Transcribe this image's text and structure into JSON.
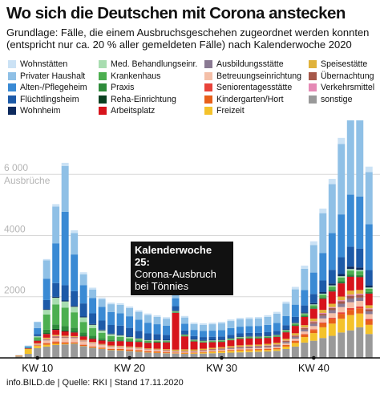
{
  "title": "Wo sich die Deutschen mit Corona anstecken",
  "subtitle": "Grundlage: Fälle, die einem Ausbruchsgeschehen zugeordnet werden konnten (entspricht nur ca. 20 % aller gemeldeten Fälle) nach Kalenderwoche 2020",
  "footer": "info.BILD.de | Quelle: RKI | Stand 17.11.2020",
  "annotation": {
    "title": "Kalenderwoche 25:",
    "text": "Corona-Ausbruch bei Tönnies"
  },
  "chart_data": {
    "type": "bar",
    "stacked": true,
    "title": "Wo sich die Deutschen mit Corona anstecken",
    "ylabel": "Ausbrüche",
    "ylim": [
      0,
      7500
    ],
    "yticks": [
      "2000",
      "4000",
      "6 000"
    ],
    "ytick_values": [
      2000,
      4000,
      6000
    ],
    "xticks": [
      "KW 10",
      "KW 20",
      "KW 30",
      "KW 40"
    ],
    "xtick_values": [
      10,
      20,
      30,
      40
    ],
    "grid": true,
    "x": [
      8,
      9,
      10,
      11,
      12,
      13,
      14,
      15,
      16,
      17,
      18,
      19,
      20,
      21,
      22,
      23,
      24,
      25,
      26,
      27,
      28,
      29,
      30,
      31,
      32,
      33,
      34,
      35,
      36,
      37,
      38,
      39,
      40,
      41,
      42,
      43,
      44,
      45,
      46
    ],
    "series": [
      {
        "name": "sonstige",
        "color": "#999999",
        "values": [
          50,
          130,
          320,
          370,
          420,
          440,
          460,
          380,
          330,
          290,
          250,
          240,
          220,
          200,
          170,
          160,
          150,
          140,
          130,
          130,
          140,
          150,
          160,
          170,
          180,
          190,
          200,
          210,
          230,
          290,
          370,
          500,
          560,
          650,
          720,
          830,
          900,
          1000,
          780
        ]
      },
      {
        "name": "Freizeit",
        "color": "#f4c22b",
        "values": [
          20,
          160,
          70,
          60,
          40,
          20,
          15,
          10,
          10,
          10,
          10,
          10,
          10,
          10,
          10,
          10,
          10,
          10,
          15,
          20,
          30,
          45,
          50,
          60,
          60,
          55,
          50,
          45,
          50,
          80,
          120,
          180,
          250,
          350,
          400,
          450,
          500,
          450,
          300
        ]
      },
      {
        "name": "Kindergarten/Hort",
        "color": "#e8601a",
        "values": [
          0,
          0,
          20,
          50,
          60,
          40,
          30,
          30,
          30,
          30,
          30,
          40,
          40,
          40,
          40,
          40,
          30,
          20,
          20,
          20,
          20,
          20,
          20,
          25,
          30,
          30,
          35,
          40,
          40,
          50,
          60,
          80,
          100,
          130,
          150,
          160,
          170,
          170,
          140
        ]
      },
      {
        "name": "Seniorentagesstätte",
        "color": "#e8433a",
        "values": [
          0,
          0,
          5,
          10,
          15,
          10,
          10,
          10,
          5,
          5,
          5,
          5,
          5,
          5,
          5,
          5,
          5,
          5,
          5,
          5,
          5,
          5,
          5,
          5,
          5,
          5,
          5,
          5,
          5,
          5,
          10,
          15,
          20,
          30,
          40,
          50,
          60,
          60,
          50
        ]
      },
      {
        "name": "Betreuungseinrichtung",
        "color": "#f4bfa8",
        "values": [
          0,
          0,
          20,
          80,
          120,
          140,
          130,
          110,
          100,
          80,
          70,
          60,
          50,
          50,
          40,
          40,
          35,
          30,
          30,
          30,
          30,
          30,
          30,
          30,
          30,
          35,
          35,
          40,
          40,
          50,
          70,
          90,
          110,
          130,
          150,
          170,
          190,
          180,
          160
        ]
      },
      {
        "name": "Ausbildungsstätte",
        "color": "#8a7a93",
        "values": [
          0,
          0,
          5,
          10,
          10,
          10,
          10,
          5,
          5,
          5,
          5,
          5,
          5,
          5,
          5,
          5,
          5,
          5,
          5,
          5,
          10,
          10,
          15,
          20,
          25,
          30,
          30,
          35,
          40,
          45,
          55,
          65,
          80,
          90,
          100,
          110,
          120,
          110,
          90
        ]
      },
      {
        "name": "Übernachtung",
        "color": "#a6584a",
        "values": [
          0,
          0,
          10,
          20,
          30,
          20,
          20,
          15,
          10,
          10,
          10,
          10,
          10,
          10,
          10,
          10,
          15,
          15,
          20,
          20,
          20,
          25,
          25,
          25,
          25,
          25,
          25,
          25,
          25,
          30,
          35,
          40,
          50,
          60,
          70,
          80,
          90,
          90,
          70
        ]
      },
      {
        "name": "Verkehrsmittel",
        "color": "#e589b5",
        "values": [
          0,
          0,
          10,
          20,
          20,
          15,
          10,
          10,
          10,
          5,
          5,
          5,
          5,
          5,
          5,
          5,
          5,
          5,
          5,
          5,
          5,
          5,
          5,
          5,
          10,
          10,
          10,
          10,
          10,
          15,
          15,
          20,
          25,
          30,
          30,
          35,
          40,
          40,
          30
        ]
      },
      {
        "name": "Speisestätte",
        "color": "#e0b23a",
        "values": [
          0,
          0,
          20,
          40,
          40,
          30,
          25,
          20,
          20,
          20,
          20,
          20,
          25,
          25,
          25,
          25,
          30,
          40,
          50,
          40,
          40,
          40,
          40,
          45,
          45,
          45,
          45,
          50,
          55,
          60,
          70,
          80,
          90,
          100,
          110,
          120,
          130,
          120,
          100
        ]
      },
      {
        "name": "Arbeitsplatz",
        "color": "#d7141c",
        "values": [
          10,
          20,
          80,
          120,
          160,
          140,
          120,
          110,
          100,
          110,
          130,
          150,
          160,
          170,
          180,
          200,
          220,
          1200,
          420,
          260,
          200,
          180,
          170,
          190,
          210,
          210,
          200,
          190,
          190,
          210,
          240,
          270,
          320,
          360,
          400,
          430,
          450,
          420,
          380
        ]
      },
      {
        "name": "Reha-Einrichtung",
        "color": "#0a4020",
        "values": [
          0,
          0,
          5,
          20,
          30,
          30,
          30,
          25,
          20,
          15,
          10,
          10,
          10,
          10,
          10,
          10,
          10,
          5,
          5,
          5,
          5,
          5,
          5,
          5,
          5,
          5,
          5,
          5,
          5,
          5,
          5,
          10,
          10,
          15,
          15,
          20,
          20,
          20,
          15
        ]
      },
      {
        "name": "Praxis",
        "color": "#2e8b3a",
        "values": [
          0,
          5,
          30,
          120,
          150,
          150,
          130,
          100,
          80,
          60,
          50,
          40,
          30,
          25,
          20,
          20,
          15,
          15,
          15,
          15,
          15,
          15,
          15,
          15,
          15,
          15,
          15,
          15,
          15,
          20,
          25,
          30,
          35,
          40,
          45,
          50,
          55,
          50,
          45
        ]
      },
      {
        "name": "Krankenhaus",
        "color": "#4caf50",
        "values": [
          0,
          10,
          80,
          500,
          650,
          600,
          500,
          350,
          250,
          180,
          120,
          90,
          70,
          50,
          40,
          30,
          25,
          25,
          25,
          25,
          25,
          25,
          25,
          25,
          25,
          25,
          25,
          25,
          25,
          30,
          40,
          50,
          70,
          80,
          100,
          120,
          130,
          120,
          100
        ]
      },
      {
        "name": "Med. Behandlungseinr.",
        "color": "#a8ddb0",
        "values": [
          0,
          5,
          30,
          150,
          220,
          200,
          180,
          150,
          110,
          80,
          60,
          50,
          40,
          30,
          20,
          20,
          15,
          15,
          15,
          15,
          15,
          15,
          15,
          15,
          15,
          15,
          15,
          15,
          15,
          20,
          20,
          25,
          30,
          35,
          40,
          45,
          50,
          45,
          40
        ]
      },
      {
        "name": "Wohnheim",
        "color": "#0d2a5e",
        "values": [
          0,
          0,
          10,
          20,
          30,
          30,
          30,
          25,
          25,
          20,
          20,
          20,
          20,
          20,
          20,
          20,
          20,
          20,
          20,
          20,
          20,
          20,
          20,
          20,
          20,
          20,
          20,
          20,
          20,
          20,
          25,
          30,
          40,
          50,
          60,
          70,
          80,
          80,
          70
        ]
      },
      {
        "name": "Flüchtlingsheim",
        "color": "#1d5aa8",
        "values": [
          0,
          10,
          60,
          300,
          450,
          500,
          480,
          430,
          350,
          300,
          280,
          300,
          280,
          230,
          200,
          180,
          160,
          140,
          120,
          100,
          100,
          100,
          100,
          100,
          100,
          100,
          100,
          110,
          120,
          140,
          180,
          230,
          300,
          380,
          450,
          550,
          650,
          620,
          500
        ]
      },
      {
        "name": "Alten-/Pflegeheim",
        "color": "#3a8ad4",
        "values": [
          0,
          30,
          200,
          700,
          1300,
          2400,
          1200,
          600,
          500,
          450,
          420,
          400,
          380,
          360,
          350,
          320,
          300,
          260,
          220,
          200,
          200,
          200,
          210,
          220,
          220,
          220,
          230,
          240,
          260,
          300,
          400,
          500,
          700,
          900,
          1200,
          1400,
          1700,
          1700,
          1500
        ]
      },
      {
        "name": "Privater Haushalt",
        "color": "#8fc0e6",
        "values": [
          10,
          30,
          200,
          600,
          1200,
          1500,
          700,
          350,
          280,
          250,
          260,
          280,
          270,
          260,
          250,
          240,
          230,
          220,
          200,
          190,
          200,
          210,
          220,
          230,
          240,
          240,
          240,
          260,
          300,
          400,
          500,
          700,
          900,
          1300,
          1600,
          2300,
          2600,
          2500,
          1700
        ]
      },
      {
        "name": "Wohnstätten",
        "color": "#cbe2f5",
        "values": [
          0,
          0,
          10,
          40,
          80,
          100,
          90,
          70,
          60,
          50,
          50,
          50,
          50,
          50,
          50,
          50,
          50,
          50,
          50,
          50,
          50,
          50,
          50,
          50,
          50,
          50,
          50,
          55,
          60,
          70,
          80,
          100,
          120,
          150,
          170,
          200,
          220,
          210,
          180
        ]
      }
    ]
  },
  "legend": [
    {
      "label": "Wohnstätten",
      "color": "#cbe2f5"
    },
    {
      "label": "Privater Haushalt",
      "color": "#8fc0e6"
    },
    {
      "label": "Alten-/Pflegeheim",
      "color": "#3a8ad4"
    },
    {
      "label": "Flüchtlingsheim",
      "color": "#1d5aa8"
    },
    {
      "label": "Wohnheim",
      "color": "#0d2a5e"
    },
    {
      "label": "Med. Behandlungseinr.",
      "color": "#a8ddb0"
    },
    {
      "label": "Krankenhaus",
      "color": "#4caf50"
    },
    {
      "label": "Praxis",
      "color": "#2e8b3a"
    },
    {
      "label": "Reha-Einrichtung",
      "color": "#0a4020"
    },
    {
      "label": "Arbeitsplatz",
      "color": "#d7141c"
    },
    {
      "label": "Ausbildungsstätte",
      "color": "#8a7a93"
    },
    {
      "label": "Betreuungseinrichtung",
      "color": "#f4bfa8"
    },
    {
      "label": "Seniorentagesstätte",
      "color": "#e8433a"
    },
    {
      "label": "Kindergarten/Hort",
      "color": "#e8601a"
    },
    {
      "label": "Freizeit",
      "color": "#f4c22b"
    },
    {
      "label": "Speisestätte",
      "color": "#e0b23a"
    },
    {
      "label": "Übernachtung",
      "color": "#a6584a"
    },
    {
      "label": "Verkehrsmittel",
      "color": "#e589b5"
    },
    {
      "label": "sonstige",
      "color": "#999999"
    }
  ]
}
